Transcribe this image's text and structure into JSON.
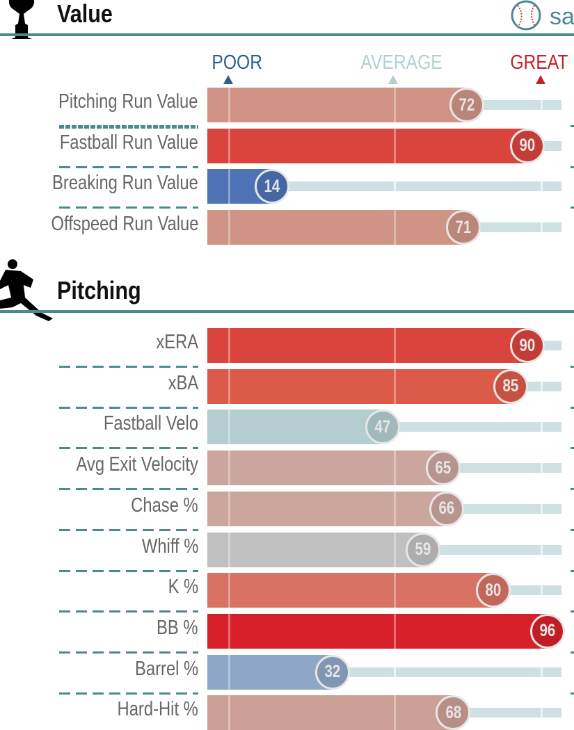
{
  "sections": [
    {
      "title": "Value",
      "icon": "trophy-icon"
    },
    {
      "title": "Pitching",
      "icon": "pitcher-icon"
    }
  ],
  "logo": {
    "text": "sa",
    "icon": "baseball-icon"
  },
  "chart_data": [
    {
      "type": "bar",
      "orientation": "horizontal",
      "title": "Value",
      "xlim": [
        0,
        100
      ],
      "scale_labels": [
        {
          "label": "POOR",
          "color": "#2f5c96"
        },
        {
          "label": "AVERAGE",
          "color": "#b3cfd1"
        },
        {
          "label": "GREAT",
          "color": "#c4202b"
        }
      ],
      "rows": [
        {
          "label": "Pitching Run Value",
          "value": 72,
          "color": "#d09385"
        },
        {
          "label": "Fastball Run Value",
          "value": 90,
          "color": "#d9443c"
        },
        {
          "label": "Breaking Run Value",
          "value": 14,
          "color": "#4d72b5"
        },
        {
          "label": "Offspeed Run Value",
          "value": 71,
          "color": "#d09486"
        }
      ]
    },
    {
      "type": "bar",
      "orientation": "horizontal",
      "title": "Pitching",
      "xlim": [
        0,
        100
      ],
      "rows": [
        {
          "label": "xERA",
          "value": 90,
          "color": "#d9443c"
        },
        {
          "label": "xBA",
          "value": 85,
          "color": "#dc5a4a"
        },
        {
          "label": "Fastball Velo",
          "value": 47,
          "color": "#b4cdd0"
        },
        {
          "label": "Avg Exit Velocity",
          "value": 65,
          "color": "#caa69e"
        },
        {
          "label": "Chase %",
          "value": 66,
          "color": "#cba69d"
        },
        {
          "label": "Whiff %",
          "value": 59,
          "color": "#c0c0c0"
        },
        {
          "label": "K %",
          "value": 80,
          "color": "#d87263"
        },
        {
          "label": "BB %",
          "value": 96,
          "color": "#d8202a"
        },
        {
          "label": "Barrel %",
          "value": 32,
          "color": "#8fa7c6"
        },
        {
          "label": "Hard-Hit %",
          "value": 68,
          "color": "#cc9f95"
        }
      ]
    }
  ]
}
